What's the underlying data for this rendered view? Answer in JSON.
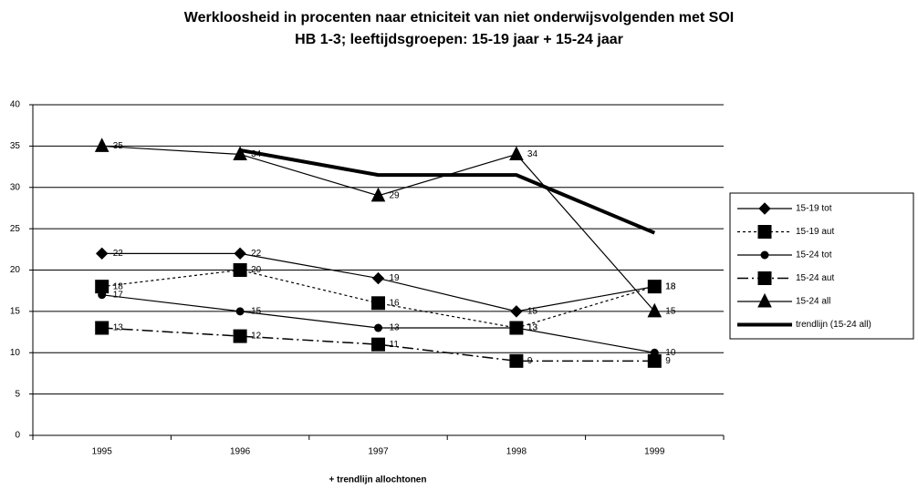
{
  "chart_data": {
    "type": "line",
    "title": "Werkloosheid in procenten naar etniciteit van niet onderwijsvolgenden met SOI",
    "subtitle": "HB 1-3; leeftijdsgroepen: 15-19 jaar + 15-24 jaar",
    "x_label": "+ trendlijn allochtonen",
    "categories": [
      "1995",
      "1996",
      "1997",
      "1998",
      "1999"
    ],
    "ylim": [
      0,
      40
    ],
    "yticks": [
      0,
      5,
      10,
      15,
      20,
      25,
      30,
      35,
      40
    ],
    "grid": true,
    "legend": "right",
    "series": [
      {
        "name": "15-19 tot",
        "color": "#000000",
        "marker": "diamond",
        "dash": "solid",
        "values": [
          22,
          22,
          19,
          15,
          18
        ]
      },
      {
        "name": "15-19 aut",
        "color": "#000000",
        "marker": "square",
        "dash": "dotted",
        "values": [
          18,
          20,
          16,
          13,
          18
        ]
      },
      {
        "name": "15-24 tot",
        "color": "#000000",
        "marker": "circle",
        "dash": "solid",
        "values": [
          17,
          15,
          13,
          13,
          10
        ]
      },
      {
        "name": "15-24 aut",
        "color": "#000000",
        "marker": "square",
        "dash": "dashdot",
        "values": [
          13,
          12,
          11,
          9,
          9
        ]
      },
      {
        "name": "15-24 all",
        "color": "#000000",
        "marker": "triangle",
        "dash": "solid",
        "values": [
          35,
          34,
          29,
          34,
          15
        ]
      },
      {
        "name": "trendlijn (15-24 all)",
        "color": "#000000",
        "marker": "none",
        "dash": "thick",
        "values": [
          null,
          34.5,
          31.5,
          31.5,
          24.5
        ]
      }
    ]
  }
}
